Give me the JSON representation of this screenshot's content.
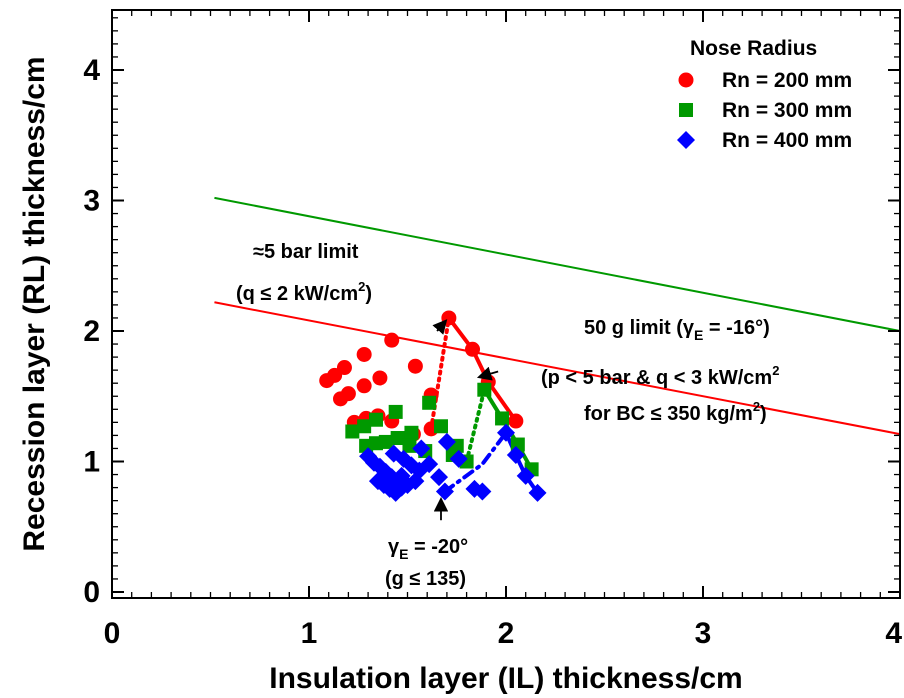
{
  "chart_data": {
    "type": "scatter",
    "xlabel": "Insulation layer (IL) thickness/cm",
    "ylabel": "Recession layer (RL) thickness/cm",
    "xlim": [
      0,
      4
    ],
    "ylim": [
      0,
      4.5
    ],
    "xticks": [
      "0",
      "1",
      "2",
      "3",
      "4"
    ],
    "yticks": [
      "0",
      "1",
      "2",
      "3",
      "4"
    ],
    "grid": false,
    "legend": {
      "title": "Nose Radius",
      "placement": "top-right",
      "entries": [
        "Rn = 200 mm",
        "Rn = 300 mm",
        "Rn = 400 mm"
      ]
    },
    "series": [
      {
        "name": "Rn = 200 mm",
        "marker": "circle",
        "color": "#ff0000",
        "points": [
          [
            1.09,
            1.62
          ],
          [
            1.13,
            1.66
          ],
          [
            1.18,
            1.72
          ],
          [
            1.28,
            1.82
          ],
          [
            1.42,
            1.93
          ],
          [
            1.54,
            1.73
          ],
          [
            1.16,
            1.48
          ],
          [
            1.2,
            1.52
          ],
          [
            1.28,
            1.58
          ],
          [
            1.36,
            1.64
          ],
          [
            1.23,
            1.3
          ],
          [
            1.29,
            1.33
          ],
          [
            1.35,
            1.35
          ],
          [
            1.42,
            1.31
          ],
          [
            1.53,
            1.21
          ],
          [
            1.62,
            1.51
          ],
          [
            1.71,
            2.1
          ],
          [
            1.83,
            1.86
          ],
          [
            1.91,
            1.61
          ],
          [
            2.05,
            1.31
          ],
          [
            1.62,
            1.25
          ]
        ]
      },
      {
        "name": "Rn = 300 mm",
        "marker": "square",
        "color": "#009900",
        "points": [
          [
            1.22,
            1.23
          ],
          [
            1.28,
            1.27
          ],
          [
            1.34,
            1.32
          ],
          [
            1.44,
            1.38
          ],
          [
            1.52,
            1.22
          ],
          [
            1.61,
            1.45
          ],
          [
            1.67,
            1.27
          ],
          [
            1.29,
            1.12
          ],
          [
            1.34,
            1.14
          ],
          [
            1.39,
            1.15
          ],
          [
            1.45,
            1.18
          ],
          [
            1.51,
            1.12
          ],
          [
            1.59,
            1.08
          ],
          [
            1.73,
            1.05
          ],
          [
            1.75,
            1.12
          ],
          [
            1.89,
            1.55
          ],
          [
            1.98,
            1.33
          ],
          [
            2.06,
            1.13
          ],
          [
            2.13,
            0.94
          ],
          [
            1.8,
            1.0
          ]
        ]
      },
      {
        "name": "Rn = 400 mm",
        "marker": "diamond",
        "color": "#0000ff",
        "points": [
          [
            1.3,
            1.04
          ],
          [
            1.33,
            0.99
          ],
          [
            1.36,
            0.96
          ],
          [
            1.39,
            0.92
          ],
          [
            1.42,
            0.88
          ],
          [
            1.46,
            0.84
          ],
          [
            1.35,
            0.85
          ],
          [
            1.38,
            0.82
          ],
          [
            1.41,
            0.79
          ],
          [
            1.44,
            0.76
          ],
          [
            1.47,
            0.8
          ],
          [
            1.5,
            0.82
          ],
          [
            1.43,
            1.06
          ],
          [
            1.48,
            1.02
          ],
          [
            1.52,
            0.97
          ],
          [
            1.56,
            0.93
          ],
          [
            1.61,
            0.98
          ],
          [
            1.66,
            0.88
          ],
          [
            1.69,
            0.77
          ],
          [
            1.7,
            1.15
          ],
          [
            1.76,
            1.02
          ],
          [
            1.84,
            0.79
          ],
          [
            1.88,
            0.77
          ],
          [
            2.0,
            1.22
          ],
          [
            2.05,
            1.05
          ],
          [
            2.1,
            0.89
          ],
          [
            2.16,
            0.76
          ],
          [
            1.57,
            1.1
          ],
          [
            1.54,
            0.85
          ],
          [
            1.47,
            0.89
          ]
        ]
      }
    ],
    "lines": [
      {
        "label": "50 g limit upper",
        "color": "#009900",
        "style": "solid",
        "x": [
          0.52,
          4.0
        ],
        "y": [
          3.02,
          2.0
        ]
      },
      {
        "label": "50 g limit lower",
        "color": "#ff0000",
        "style": "solid",
        "x": [
          0.52,
          4.0
        ],
        "y": [
          2.22,
          1.21
        ]
      },
      {
        "label": "5 bar limit Rn200",
        "color": "#ff0000",
        "style": "solid-thick",
        "x": [
          1.71,
          1.83,
          1.91,
          2.05
        ],
        "y": [
          2.1,
          1.86,
          1.61,
          1.31
        ]
      },
      {
        "label": "5 bar limit Rn300",
        "color": "#009900",
        "style": "solid-thick",
        "x": [
          1.89,
          1.98,
          2.06,
          2.13
        ],
        "y": [
          1.55,
          1.33,
          1.13,
          0.94
        ]
      },
      {
        "label": "5 bar limit Rn400",
        "color": "#0000ff",
        "style": "solid-thick",
        "x": [
          2.0,
          2.05,
          2.1,
          2.16
        ],
        "y": [
          1.22,
          1.05,
          0.89,
          0.76
        ]
      },
      {
        "label": "g limit Rn200",
        "color": "#ff0000",
        "style": "dotted",
        "x": [
          1.62,
          1.71
        ],
        "y": [
          1.25,
          2.1
        ]
      },
      {
        "label": "g limit Rn300",
        "color": "#009900",
        "style": "dotted",
        "x": [
          1.8,
          1.89
        ],
        "y": [
          1.0,
          1.55
        ]
      },
      {
        "label": "g limit Rn400",
        "color": "#0000ff",
        "style": "dash-dot",
        "x": [
          1.69,
          1.88,
          2.0
        ],
        "y": [
          0.77,
          0.98,
          1.22
        ]
      }
    ],
    "annotations": {
      "bar_limit_1": "≈5 bar limit",
      "bar_limit_2": "(q ≤ 2 kW/cm",
      "bar_limit_sup": "2",
      "bar_limit_close": ")",
      "g50_1_pre": "50 g limit (γ",
      "g50_1_sub": "E",
      "g50_1_post": " = -16°)",
      "g50_2": "(p < 5 bar  & q < 3 kW/cm",
      "g50_2_sup": "2",
      "g50_3": "for BC ≤ 350 kg/m",
      "g50_3_sup": "2",
      "g50_3_close": ")",
      "gamma_pre": "γ",
      "gamma_sub": "E",
      "gamma_post": " = -20°",
      "g135": "(g ≤ 135)"
    },
    "arrows": [
      {
        "from": [
          1.65,
          2.0
        ],
        "to": [
          1.69,
          2.07
        ]
      },
      {
        "from": [
          1.96,
          1.69
        ],
        "to": [
          1.87,
          1.65
        ]
      },
      {
        "from": [
          1.67,
          0.55
        ],
        "to": [
          1.67,
          0.7
        ]
      }
    ]
  }
}
